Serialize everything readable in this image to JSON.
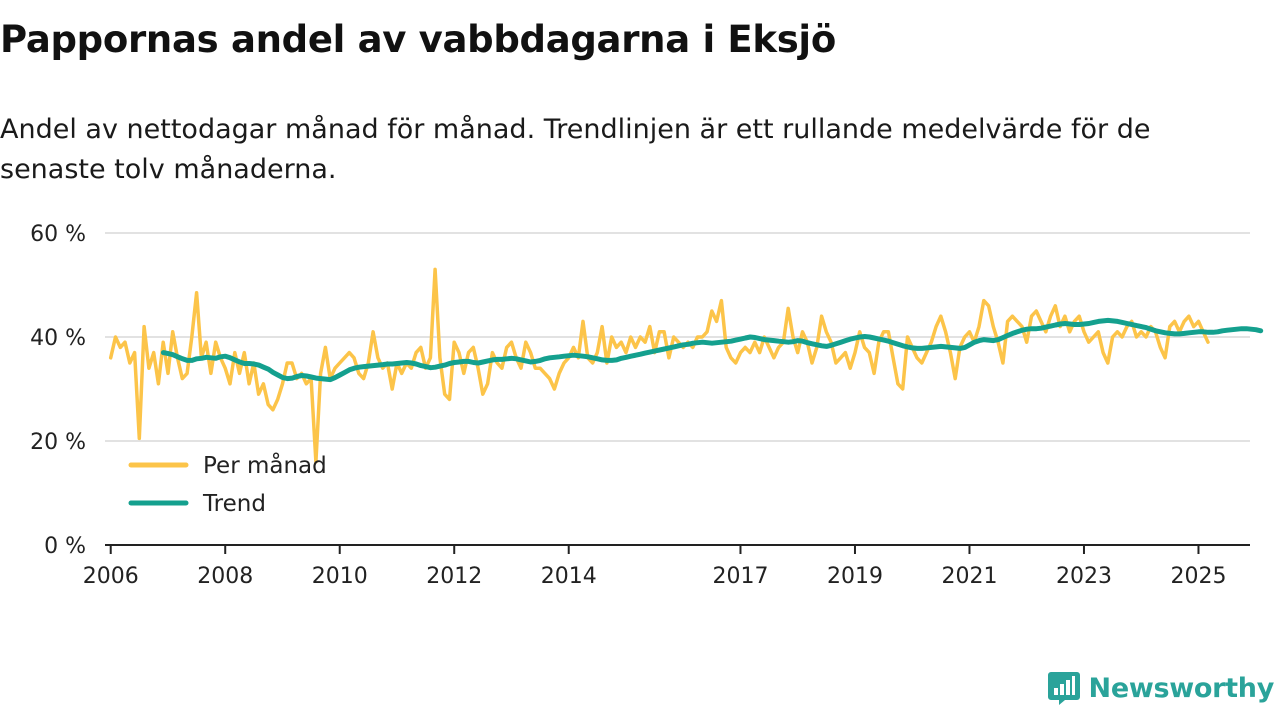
{
  "header": {
    "title": "Pappornas andel av vabbdagarna i Eksjö",
    "subtitle": "Andel av nettodagar månad för månad. Trendlinjen är ett rullande medelvärde för de senaste tolv månaderna."
  },
  "brand": {
    "name": "Newsworthy",
    "icon": "newsworthy-logo-icon",
    "color": "#2aa39a"
  },
  "chart_data": {
    "type": "line",
    "title": "Pappornas andel av vabbdagarna i Eksjö",
    "xlabel": "",
    "ylabel": "",
    "ylim": [
      0,
      60
    ],
    "xlim": [
      2005.9,
      2025.9
    ],
    "y_ticks": [
      0,
      20,
      40,
      60
    ],
    "y_tick_labels": [
      "0 %",
      "20 %",
      "40 %",
      "60 %"
    ],
    "x_ticks": [
      2006,
      2008,
      2010,
      2012,
      2014,
      2017,
      2019,
      2021,
      2023,
      2025
    ],
    "x_tick_labels": [
      "2006",
      "2008",
      "2010",
      "2012",
      "2014",
      "2017",
      "2019",
      "2021",
      "2023",
      "2025"
    ],
    "grid": true,
    "legend": "bottom-left",
    "series": [
      {
        "name": "Per månad",
        "color": "#fcc449",
        "start_year": 2006.0,
        "step_months": 1,
        "values": [
          36,
          40,
          38,
          39,
          35,
          37,
          20.5,
          42,
          34,
          37,
          31,
          39,
          33,
          41,
          36,
          32,
          33,
          40,
          48.5,
          36,
          39,
          33,
          39,
          36,
          34,
          31,
          37,
          33,
          37,
          31,
          35,
          29,
          31,
          27,
          26,
          28,
          31,
          35,
          35,
          32,
          33,
          31,
          32,
          16,
          33,
          38,
          32,
          34,
          35,
          36,
          37,
          36,
          33,
          32,
          35,
          41,
          36,
          34,
          35,
          30,
          35,
          33,
          35,
          34,
          37,
          38,
          34,
          36,
          53,
          36,
          29,
          28,
          39,
          37,
          33,
          37,
          38,
          34,
          29,
          31,
          37,
          35,
          34,
          38,
          39,
          36,
          34,
          39,
          37,
          34,
          34,
          33,
          32,
          30,
          33,
          35,
          36,
          38,
          36,
          43,
          36,
          35,
          37,
          42,
          35,
          40,
          38,
          39,
          37,
          40,
          38,
          40,
          39,
          42,
          37,
          41,
          41,
          36,
          40,
          39,
          38,
          39,
          38,
          40,
          40,
          41,
          45,
          43,
          47,
          38,
          36,
          35,
          37,
          38,
          37,
          39,
          37,
          40,
          38,
          36,
          38,
          39,
          45.5,
          40,
          37,
          41,
          39,
          35,
          38,
          44,
          41,
          39,
          35,
          36,
          37,
          34,
          37,
          41,
          38,
          37,
          33,
          39,
          41,
          41,
          36,
          31,
          30,
          40,
          38,
          36,
          35,
          37,
          39,
          42,
          44,
          41,
          37,
          32,
          38,
          40,
          41,
          39,
          42,
          47,
          46,
          42,
          39,
          35,
          43,
          44,
          43,
          42,
          39,
          44,
          45,
          43,
          41,
          44,
          46,
          42,
          44,
          41,
          43,
          44,
          41,
          39,
          40,
          41,
          37,
          35,
          40,
          41,
          40,
          42,
          43,
          40,
          41,
          40,
          42,
          41,
          38,
          36,
          42,
          43,
          41,
          43,
          44,
          42,
          43,
          41,
          39
        ]
      },
      {
        "name": "Trend",
        "color": "#14a08e",
        "start_year": 2006.92,
        "step_months": 1,
        "values": [
          37,
          36.8,
          36.6,
          36.2,
          35.8,
          35.5,
          35.5,
          35.8,
          35.9,
          36.1,
          36.0,
          35.9,
          36.2,
          36.3,
          36.0,
          35.6,
          35.2,
          34.9,
          34.9,
          34.8,
          34.6,
          34.2,
          33.8,
          33.2,
          32.7,
          32.2,
          32.0,
          32.1,
          32.4,
          32.6,
          32.5,
          32.3,
          32.1,
          32.0,
          31.9,
          31.8,
          32.2,
          32.7,
          33.2,
          33.7,
          34.0,
          34.2,
          34.3,
          34.4,
          34.5,
          34.6,
          34.7,
          34.8,
          34.8,
          34.9,
          35.0,
          35.1,
          35.0,
          34.8,
          34.5,
          34.3,
          34.1,
          34.2,
          34.4,
          34.6,
          34.9,
          35.1,
          35.2,
          35.3,
          35.3,
          35.1,
          35.0,
          35.2,
          35.4,
          35.6,
          35.7,
          35.7,
          35.8,
          35.9,
          35.8,
          35.6,
          35.4,
          35.2,
          35.3,
          35.5,
          35.8,
          36.0,
          36.1,
          36.2,
          36.3,
          36.4,
          36.5,
          36.4,
          36.3,
          36.2,
          36.0,
          35.8,
          35.6,
          35.5,
          35.5,
          35.6,
          35.9,
          36.1,
          36.3,
          36.5,
          36.7,
          36.9,
          37.1,
          37.3,
          37.5,
          37.7,
          37.9,
          38.1,
          38.3,
          38.5,
          38.6,
          38.8,
          38.9,
          39.0,
          38.9,
          38.8,
          38.9,
          39.0,
          39.1,
          39.2,
          39.4,
          39.6,
          39.8,
          40.0,
          39.9,
          39.7,
          39.5,
          39.4,
          39.3,
          39.2,
          39.1,
          39.0,
          39.1,
          39.3,
          39.2,
          38.9,
          38.7,
          38.5,
          38.3,
          38.2,
          38.4,
          38.7,
          39.0,
          39.3,
          39.6,
          39.8,
          40.0,
          40.1,
          40.0,
          39.8,
          39.6,
          39.4,
          39.2,
          38.9,
          38.6,
          38.3,
          38.1,
          37.9,
          37.8,
          37.8,
          37.9,
          38.0,
          38.1,
          38.2,
          38.1,
          38.0,
          37.9,
          37.8,
          38.0,
          38.5,
          39.0,
          39.3,
          39.5,
          39.4,
          39.3,
          39.5,
          39.9,
          40.3,
          40.7,
          41.0,
          41.3,
          41.5,
          41.6,
          41.6,
          41.7,
          41.9,
          42.1,
          42.3,
          42.5,
          42.6,
          42.5,
          42.4,
          42.4,
          42.5,
          42.6,
          42.8,
          43.0,
          43.1,
          43.2,
          43.1,
          43.0,
          42.8,
          42.6,
          42.4,
          42.2,
          42.0,
          41.8,
          41.5,
          41.2,
          41.0,
          40.8,
          40.7,
          40.6,
          40.6,
          40.7,
          40.8,
          40.9,
          41.0,
          41.0,
          40.9,
          40.9,
          41.0,
          41.2,
          41.3,
          41.4,
          41.5,
          41.6,
          41.6,
          41.5,
          41.4,
          41.2
        ]
      }
    ]
  }
}
